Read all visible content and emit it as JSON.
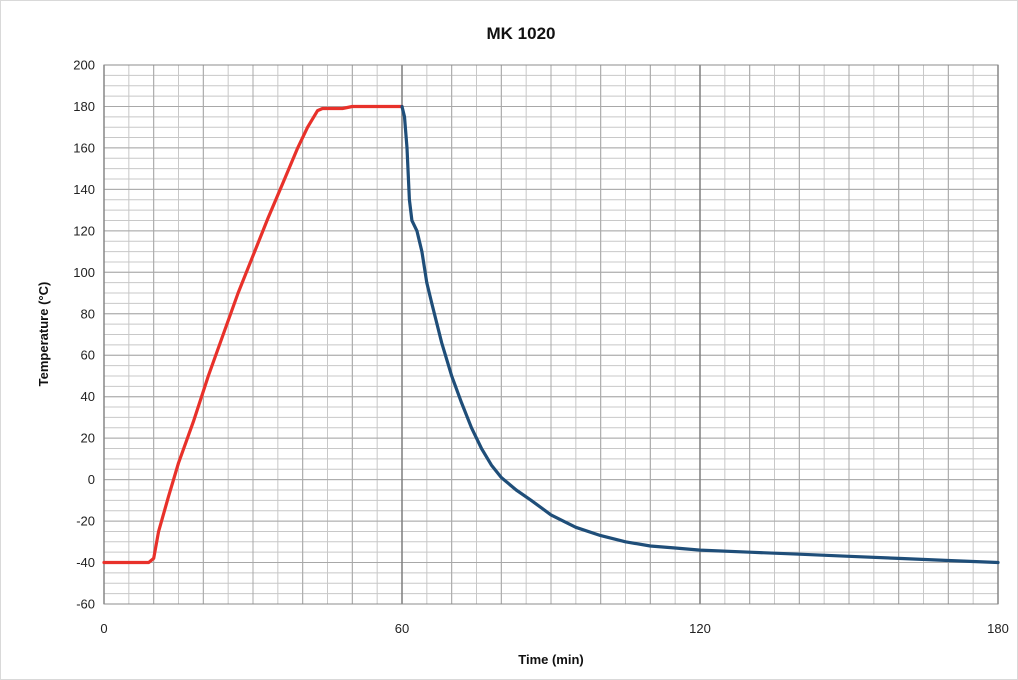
{
  "chart_data": {
    "type": "line",
    "title": "MK 1020",
    "xlabel": "Time (min)",
    "ylabel": "Temperature (°C)",
    "xlim": [
      0,
      180
    ],
    "ylim": [
      -60,
      200
    ],
    "x_ticks": [
      0,
      60,
      120,
      180
    ],
    "y_ticks": [
      -60,
      -40,
      -20,
      0,
      20,
      40,
      60,
      80,
      100,
      120,
      140,
      160,
      180,
      200
    ],
    "grid": true,
    "legend": "none",
    "series": [
      {
        "color": "#e8312a",
        "x": [
          0,
          9,
          10,
          11,
          13,
          15,
          18,
          21,
          24,
          27,
          30,
          33,
          36,
          39,
          41,
          43,
          44,
          46,
          48,
          50,
          55,
          60
        ],
        "y": [
          -40,
          -40,
          -38,
          -25,
          -8,
          8,
          28,
          50,
          70,
          90,
          108,
          126,
          143,
          160,
          170,
          178,
          179,
          179,
          179,
          180,
          180,
          180
        ]
      },
      {
        "color": "#1f4e79",
        "x": [
          60,
          60.5,
          61,
          61.5,
          62,
          63,
          64,
          65,
          66,
          68,
          70,
          72,
          74,
          76,
          78,
          80,
          83,
          86,
          90,
          95,
          100,
          105,
          110,
          115,
          120,
          130,
          140,
          150,
          160,
          170,
          175,
          180
        ],
        "y": [
          180,
          175,
          160,
          135,
          125,
          120,
          110,
          95,
          85,
          66,
          50,
          37,
          25,
          15,
          7,
          1,
          -5,
          -10,
          -17,
          -23,
          -27,
          -30,
          -32,
          -33,
          -34,
          -35,
          -36,
          -37,
          -38,
          -39,
          -39.5,
          -40
        ]
      }
    ]
  }
}
